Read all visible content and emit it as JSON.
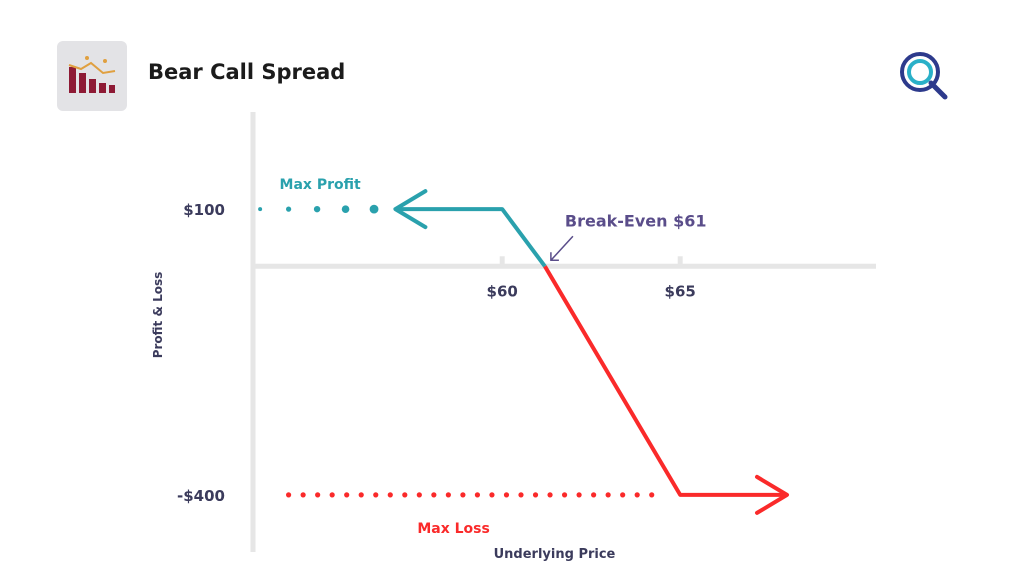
{
  "header": {
    "title": "Bear Call Spread",
    "logo_icon": "bear-market-bars-icon",
    "brand_icon": "q-magnifier-logo-icon"
  },
  "colors": {
    "axis": "#e6e6e6",
    "text_dark": "#3b3b5c",
    "profit": "#2aa1ad",
    "loss": "#fa2a2a",
    "breakeven": "#5a4d8a",
    "logo_bars": "#8e1a35",
    "logo_tile": "#e3e3e6"
  },
  "chart_data": {
    "type": "line",
    "title": "Bear Call Spread",
    "xlabel": "Underlying Price",
    "ylabel": "Profit & Loss",
    "x_ticks": [
      {
        "value": 60,
        "label": "$60"
      },
      {
        "value": 65,
        "label": "$65"
      }
    ],
    "y_ticks": [
      {
        "value": 100,
        "label": "$100"
      },
      {
        "value": -400,
        "label": "-$400"
      }
    ],
    "xlim": [
      53,
      70.5
    ],
    "ylim": [
      -500,
      270
    ],
    "payoff": [
      {
        "x": 57,
        "y": 100
      },
      {
        "x": 60,
        "y": 100
      },
      {
        "x": 61.2,
        "y": 0
      },
      {
        "x": 65,
        "y": -400
      },
      {
        "x": 68,
        "y": -400
      }
    ],
    "series": [
      {
        "name": "Max Profit",
        "color": "#2aa1ad",
        "segment": "profit",
        "arrow": "left"
      },
      {
        "name": "Max Loss",
        "color": "#fa2a2a",
        "segment": "loss",
        "arrow": "right"
      }
    ],
    "annotations": {
      "max_profit": {
        "label": "Max Profit",
        "value": 100,
        "dots_from_x": 53.2,
        "dots_to_x": 56.4
      },
      "max_loss": {
        "label": "Max Loss",
        "value": -400,
        "dots_from_x": 54,
        "dots_to_x": 64.2
      },
      "breakeven": {
        "label": "Break-Even $61",
        "x": 61.2,
        "y": 0
      }
    },
    "grid": false,
    "legend": "none"
  }
}
